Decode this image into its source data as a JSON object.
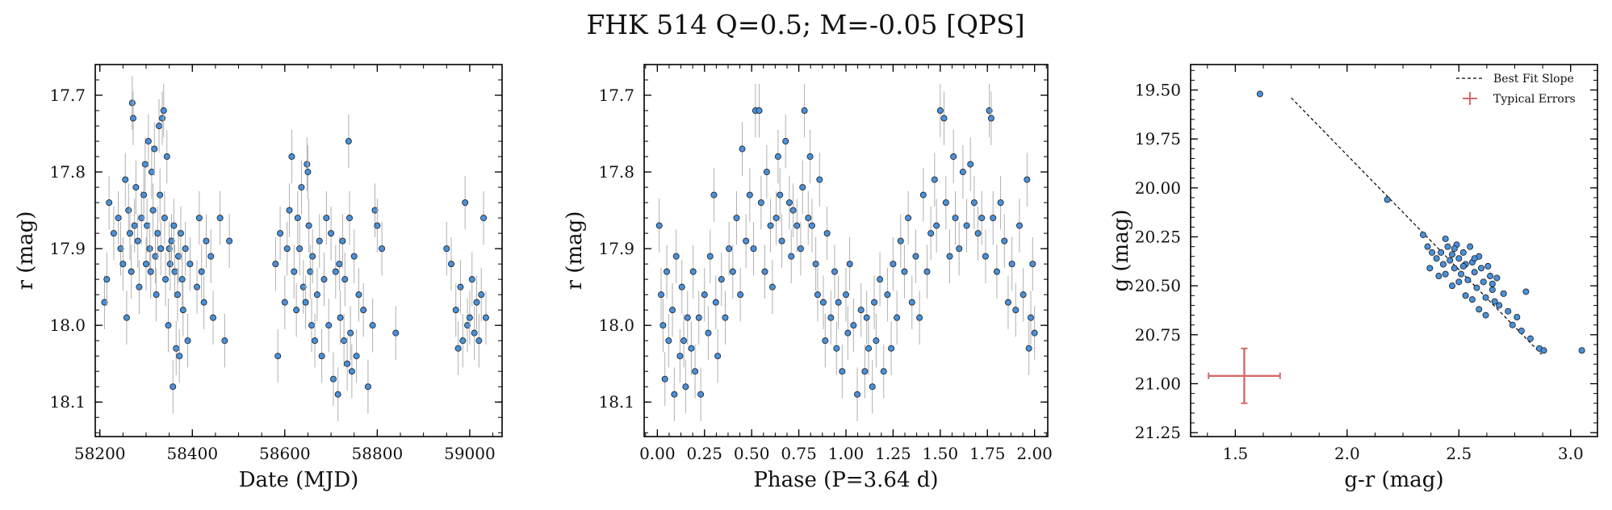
{
  "figure": {
    "title": "FHK 514  Q=0.5; M=-0.05 [QPS]"
  },
  "colors": {
    "point_fill": "#4a90d9",
    "point_edge": "#1a1a1a",
    "error_bar": "#b0b0b0",
    "best_fit": "#000000",
    "typical_error": "#d46a6a"
  },
  "chart_data": [
    {
      "type": "scatter",
      "title": "",
      "xlabel": "Date (MJD)",
      "ylabel": "r (mag)",
      "xlim": [
        58190,
        59070
      ],
      "ylim": [
        18.145,
        17.66
      ],
      "y_inverted": true,
      "xticks": [
        58200,
        58400,
        58600,
        58800,
        59000
      ],
      "xtick_labels": [
        "58200",
        "58400",
        "58600",
        "58800",
        "59000"
      ],
      "yticks": [
        17.7,
        17.8,
        17.9,
        18.0,
        18.1
      ],
      "ytick_labels": [
        "17.7",
        "17.8",
        "17.9",
        "18.0",
        "18.1"
      ],
      "points": [
        [
          58210,
          17.97
        ],
        [
          58215,
          17.94
        ],
        [
          58220,
          17.84
        ],
        [
          58230,
          17.88
        ],
        [
          58240,
          17.86
        ],
        [
          58245,
          17.9
        ],
        [
          58250,
          17.92
        ],
        [
          58255,
          17.81
        ],
        [
          58258,
          17.99
        ],
        [
          58262,
          17.85
        ],
        [
          58265,
          17.88
        ],
        [
          58268,
          17.93
        ],
        [
          58270,
          17.71
        ],
        [
          58272,
          17.73
        ],
        [
          58275,
          17.87
        ],
        [
          58278,
          17.82
        ],
        [
          58282,
          17.89
        ],
        [
          58285,
          17.95
        ],
        [
          58290,
          17.86
        ],
        [
          58295,
          17.83
        ],
        [
          58298,
          17.79
        ],
        [
          58300,
          17.92
        ],
        [
          58302,
          17.87
        ],
        [
          58305,
          17.76
        ],
        [
          58308,
          17.9
        ],
        [
          58310,
          17.93
        ],
        [
          58312,
          17.8
        ],
        [
          58315,
          17.85
        ],
        [
          58318,
          17.77
        ],
        [
          58320,
          17.91
        ],
        [
          58322,
          17.96
        ],
        [
          58325,
          17.88
        ],
        [
          58328,
          17.74
        ],
        [
          58330,
          17.83
        ],
        [
          58332,
          17.9
        ],
        [
          58335,
          17.73
        ],
        [
          58338,
          17.72
        ],
        [
          58340,
          17.86
        ],
        [
          58342,
          17.94
        ],
        [
          58345,
          17.78
        ],
        [
          58348,
          18.0
        ],
        [
          58350,
          17.9
        ],
        [
          58352,
          17.92
        ],
        [
          58355,
          17.89
        ],
        [
          58358,
          18.08
        ],
        [
          58360,
          17.87
        ],
        [
          58362,
          17.93
        ],
        [
          58365,
          18.03
        ],
        [
          58368,
          17.96
        ],
        [
          58370,
          17.91
        ],
        [
          58372,
          18.04
        ],
        [
          58375,
          17.88
        ],
        [
          58378,
          17.94
        ],
        [
          58380,
          17.98
        ],
        [
          58385,
          17.9
        ],
        [
          58390,
          18.02
        ],
        [
          58395,
          17.92
        ],
        [
          58410,
          17.95
        ],
        [
          58415,
          17.86
        ],
        [
          58420,
          17.93
        ],
        [
          58425,
          17.97
        ],
        [
          58430,
          17.89
        ],
        [
          58440,
          17.91
        ],
        [
          58445,
          17.99
        ],
        [
          58460,
          17.86
        ],
        [
          58470,
          18.02
        ],
        [
          58480,
          17.89
        ],
        [
          58580,
          17.92
        ],
        [
          58585,
          18.04
        ],
        [
          58590,
          17.88
        ],
        [
          58600,
          17.97
        ],
        [
          58605,
          17.9
        ],
        [
          58610,
          17.85
        ],
        [
          58615,
          17.78
        ],
        [
          58620,
          17.93
        ],
        [
          58625,
          17.98
        ],
        [
          58628,
          17.86
        ],
        [
          58632,
          17.9
        ],
        [
          58636,
          17.82
        ],
        [
          58640,
          17.95
        ],
        [
          58645,
          17.97
        ],
        [
          58648,
          17.79
        ],
        [
          58650,
          17.8
        ],
        [
          58652,
          17.87
        ],
        [
          58655,
          17.93
        ],
        [
          58658,
          18.0
        ],
        [
          58660,
          17.91
        ],
        [
          58665,
          18.02
        ],
        [
          58670,
          17.96
        ],
        [
          58675,
          17.89
        ],
        [
          58680,
          18.04
        ],
        [
          58685,
          17.94
        ],
        [
          58690,
          17.86
        ],
        [
          58695,
          18.0
        ],
        [
          58700,
          17.88
        ],
        [
          58705,
          18.07
        ],
        [
          58710,
          17.93
        ],
        [
          58715,
          18.09
        ],
        [
          58718,
          17.92
        ],
        [
          58720,
          17.99
        ],
        [
          58725,
          17.89
        ],
        [
          58728,
          18.02
        ],
        [
          58730,
          17.94
        ],
        [
          58735,
          18.05
        ],
        [
          58738,
          17.76
        ],
        [
          58740,
          17.86
        ],
        [
          58742,
          18.01
        ],
        [
          58745,
          18.06
        ],
        [
          58750,
          17.91
        ],
        [
          58755,
          18.04
        ],
        [
          58760,
          17.96
        ],
        [
          58770,
          17.98
        ],
        [
          58780,
          18.08
        ],
        [
          58790,
          18.0
        ],
        [
          58795,
          17.85
        ],
        [
          58800,
          17.87
        ],
        [
          58810,
          17.9
        ],
        [
          58840,
          18.01
        ],
        [
          58950,
          17.9
        ],
        [
          58960,
          17.92
        ],
        [
          58970,
          17.98
        ],
        [
          58975,
          18.03
        ],
        [
          58980,
          17.95
        ],
        [
          58985,
          18.02
        ],
        [
          58990,
          17.84
        ],
        [
          58995,
          18.0
        ],
        [
          59000,
          17.99
        ],
        [
          59005,
          17.94
        ],
        [
          59010,
          18.01
        ],
        [
          59015,
          17.97
        ],
        [
          59020,
          18.02
        ],
        [
          59025,
          17.96
        ],
        [
          59030,
          17.86
        ],
        [
          59035,
          17.99
        ]
      ],
      "y_error": 0.035
    },
    {
      "type": "scatter",
      "title": "",
      "xlabel": "Phase (P=3.64 d)",
      "ylabel": "r (mag)",
      "xlim": [
        -0.07,
        2.07
      ],
      "ylim": [
        18.145,
        17.66
      ],
      "y_inverted": true,
      "xticks": [
        0.0,
        0.25,
        0.5,
        0.75,
        1.0,
        1.25,
        1.5,
        1.75,
        2.0
      ],
      "xtick_labels": [
        "0.00",
        "0.25",
        "0.50",
        "0.75",
        "1.00",
        "1.25",
        "1.50",
        "1.75",
        "2.00"
      ],
      "yticks": [
        17.7,
        17.8,
        17.9,
        18.0,
        18.1
      ],
      "ytick_labels": [
        "17.7",
        "17.8",
        "17.9",
        "18.0",
        "18.1"
      ],
      "points": [
        [
          0.01,
          17.87
        ],
        [
          0.02,
          17.96
        ],
        [
          0.03,
          18.0
        ],
        [
          0.04,
          18.07
        ],
        [
          0.05,
          17.93
        ],
        [
          0.06,
          18.02
        ],
        [
          0.08,
          17.98
        ],
        [
          0.09,
          18.09
        ],
        [
          0.1,
          17.91
        ],
        [
          0.12,
          18.04
        ],
        [
          0.13,
          17.95
        ],
        [
          0.14,
          18.02
        ],
        [
          0.15,
          18.08
        ],
        [
          0.16,
          17.99
        ],
        [
          0.18,
          18.03
        ],
        [
          0.19,
          17.93
        ],
        [
          0.2,
          18.06
        ],
        [
          0.22,
          17.99
        ],
        [
          0.23,
          18.09
        ],
        [
          0.25,
          17.96
        ],
        [
          0.27,
          18.01
        ],
        [
          0.28,
          17.91
        ],
        [
          0.3,
          17.83
        ],
        [
          0.31,
          17.97
        ],
        [
          0.32,
          18.04
        ],
        [
          0.34,
          17.94
        ],
        [
          0.36,
          17.99
        ],
        [
          0.38,
          17.9
        ],
        [
          0.4,
          17.93
        ],
        [
          0.42,
          17.86
        ],
        [
          0.44,
          17.96
        ],
        [
          0.45,
          17.77
        ],
        [
          0.47,
          17.89
        ],
        [
          0.49,
          17.83
        ],
        [
          0.51,
          17.9
        ],
        [
          0.52,
          17.72
        ],
        [
          0.54,
          17.72
        ],
        [
          0.55,
          17.84
        ],
        [
          0.57,
          17.93
        ],
        [
          0.58,
          17.8
        ],
        [
          0.6,
          17.87
        ],
        [
          0.61,
          17.95
        ],
        [
          0.63,
          17.86
        ],
        [
          0.64,
          17.78
        ],
        [
          0.65,
          17.83
        ],
        [
          0.66,
          17.89
        ],
        [
          0.68,
          17.76
        ],
        [
          0.7,
          17.84
        ],
        [
          0.71,
          17.91
        ],
        [
          0.72,
          17.85
        ],
        [
          0.74,
          17.87
        ],
        [
          0.76,
          17.9
        ],
        [
          0.77,
          17.82
        ],
        [
          0.78,
          17.72
        ],
        [
          0.8,
          17.86
        ],
        [
          0.81,
          17.78
        ],
        [
          0.82,
          17.87
        ],
        [
          0.84,
          17.92
        ],
        [
          0.85,
          17.96
        ],
        [
          0.86,
          17.81
        ],
        [
          0.88,
          17.97
        ],
        [
          0.89,
          18.02
        ],
        [
          0.9,
          17.88
        ],
        [
          0.92,
          17.99
        ],
        [
          0.94,
          17.93
        ],
        [
          0.95,
          18.03
        ],
        [
          0.96,
          17.97
        ],
        [
          0.98,
          18.06
        ],
        [
          1.0,
          17.96
        ],
        [
          1.01,
          18.01
        ],
        [
          1.02,
          17.92
        ],
        [
          1.04,
          18.0
        ],
        [
          1.06,
          18.09
        ],
        [
          1.08,
          17.98
        ],
        [
          1.1,
          18.06
        ],
        [
          1.11,
          17.99
        ],
        [
          1.12,
          18.03
        ],
        [
          1.14,
          18.08
        ],
        [
          1.15,
          17.97
        ],
        [
          1.16,
          18.02
        ],
        [
          1.18,
          17.94
        ],
        [
          1.2,
          18.06
        ],
        [
          1.22,
          17.96
        ],
        [
          1.24,
          18.03
        ],
        [
          1.25,
          17.92
        ],
        [
          1.27,
          17.99
        ],
        [
          1.29,
          17.89
        ],
        [
          1.31,
          17.93
        ],
        [
          1.33,
          17.86
        ],
        [
          1.35,
          17.97
        ],
        [
          1.37,
          17.91
        ],
        [
          1.39,
          17.99
        ],
        [
          1.41,
          17.83
        ],
        [
          1.43,
          17.93
        ],
        [
          1.45,
          17.88
        ],
        [
          1.47,
          17.81
        ],
        [
          1.48,
          17.87
        ],
        [
          1.5,
          17.72
        ],
        [
          1.52,
          17.73
        ],
        [
          1.53,
          17.84
        ],
        [
          1.55,
          17.91
        ],
        [
          1.57,
          17.78
        ],
        [
          1.58,
          17.86
        ],
        [
          1.6,
          17.9
        ],
        [
          1.62,
          17.8
        ],
        [
          1.64,
          17.87
        ],
        [
          1.66,
          17.79
        ],
        [
          1.68,
          17.84
        ],
        [
          1.7,
          17.88
        ],
        [
          1.72,
          17.86
        ],
        [
          1.74,
          17.91
        ],
        [
          1.76,
          17.72
        ],
        [
          1.77,
          17.73
        ],
        [
          1.78,
          17.86
        ],
        [
          1.8,
          17.93
        ],
        [
          1.82,
          17.84
        ],
        [
          1.84,
          17.89
        ],
        [
          1.86,
          17.97
        ],
        [
          1.88,
          17.92
        ],
        [
          1.9,
          17.98
        ],
        [
          1.92,
          17.87
        ],
        [
          1.94,
          17.96
        ],
        [
          1.96,
          17.81
        ],
        [
          1.97,
          18.03
        ],
        [
          1.98,
          17.99
        ],
        [
          1.99,
          17.92
        ],
        [
          2.0,
          18.01
        ]
      ],
      "y_error": 0.035
    },
    {
      "type": "scatter",
      "title": "",
      "xlabel": "g-r (mag)",
      "ylabel": "g (mag)",
      "xlim": [
        1.3,
        3.12
      ],
      "ylim": [
        21.27,
        19.37
      ],
      "y_inverted": true,
      "xticks": [
        1.5,
        2.0,
        2.5,
        3.0
      ],
      "xtick_labels": [
        "1.5",
        "2.0",
        "2.5",
        "3.0"
      ],
      "yticks": [
        19.5,
        19.75,
        20.0,
        20.25,
        20.5,
        20.75,
        21.0,
        21.25
      ],
      "ytick_labels": [
        "19.50",
        "19.75",
        "20.00",
        "20.25",
        "20.50",
        "20.75",
        "21.00",
        "21.25"
      ],
      "points": [
        [
          1.61,
          19.52
        ],
        [
          2.18,
          20.06
        ],
        [
          2.34,
          20.24
        ],
        [
          2.36,
          20.3
        ],
        [
          2.38,
          20.33
        ],
        [
          2.4,
          20.36
        ],
        [
          2.42,
          20.33
        ],
        [
          2.43,
          20.39
        ],
        [
          2.44,
          20.26
        ],
        [
          2.45,
          20.3
        ],
        [
          2.46,
          20.37
        ],
        [
          2.47,
          20.34
        ],
        [
          2.48,
          20.41
        ],
        [
          2.49,
          20.29
        ],
        [
          2.5,
          20.36
        ],
        [
          2.51,
          20.44
        ],
        [
          2.52,
          20.33
        ],
        [
          2.53,
          20.39
        ],
        [
          2.54,
          20.47
        ],
        [
          2.55,
          20.3
        ],
        [
          2.56,
          20.38
        ],
        [
          2.57,
          20.43
        ],
        [
          2.58,
          20.51
        ],
        [
          2.59,
          20.35
        ],
        [
          2.6,
          20.41
        ],
        [
          2.61,
          20.48
        ],
        [
          2.62,
          20.56
        ],
        [
          2.63,
          20.4
        ],
        [
          2.64,
          20.45
        ],
        [
          2.65,
          20.52
        ],
        [
          2.66,
          20.58
        ],
        [
          2.67,
          20.46
        ],
        [
          2.68,
          20.6
        ],
        [
          2.7,
          20.54
        ],
        [
          2.72,
          20.63
        ],
        [
          2.74,
          20.7
        ],
        [
          2.76,
          20.66
        ],
        [
          2.78,
          20.73
        ],
        [
          2.8,
          20.53
        ],
        [
          2.82,
          20.77
        ],
        [
          2.86,
          20.82
        ],
        [
          2.88,
          20.83
        ],
        [
          3.05,
          20.83
        ],
        [
          2.37,
          20.41
        ],
        [
          2.41,
          20.45
        ],
        [
          2.44,
          20.44
        ],
        [
          2.47,
          20.5
        ],
        [
          2.5,
          20.48
        ],
        [
          2.53,
          20.55
        ],
        [
          2.56,
          20.57
        ],
        [
          2.59,
          20.62
        ],
        [
          2.62,
          20.65
        ],
        [
          2.65,
          20.49
        ],
        [
          2.48,
          20.31
        ],
        [
          2.52,
          20.4
        ],
        [
          2.57,
          20.36
        ]
      ],
      "best_fit": {
        "label": "Best Fit Slope",
        "x": [
          1.75,
          2.87
        ],
        "y": [
          19.54,
          20.85
        ]
      },
      "typical_error": {
        "label": "Typical Errors",
        "x": 1.54,
        "y": 20.96,
        "xerr": 0.16,
        "yerr": 0.14
      }
    }
  ]
}
